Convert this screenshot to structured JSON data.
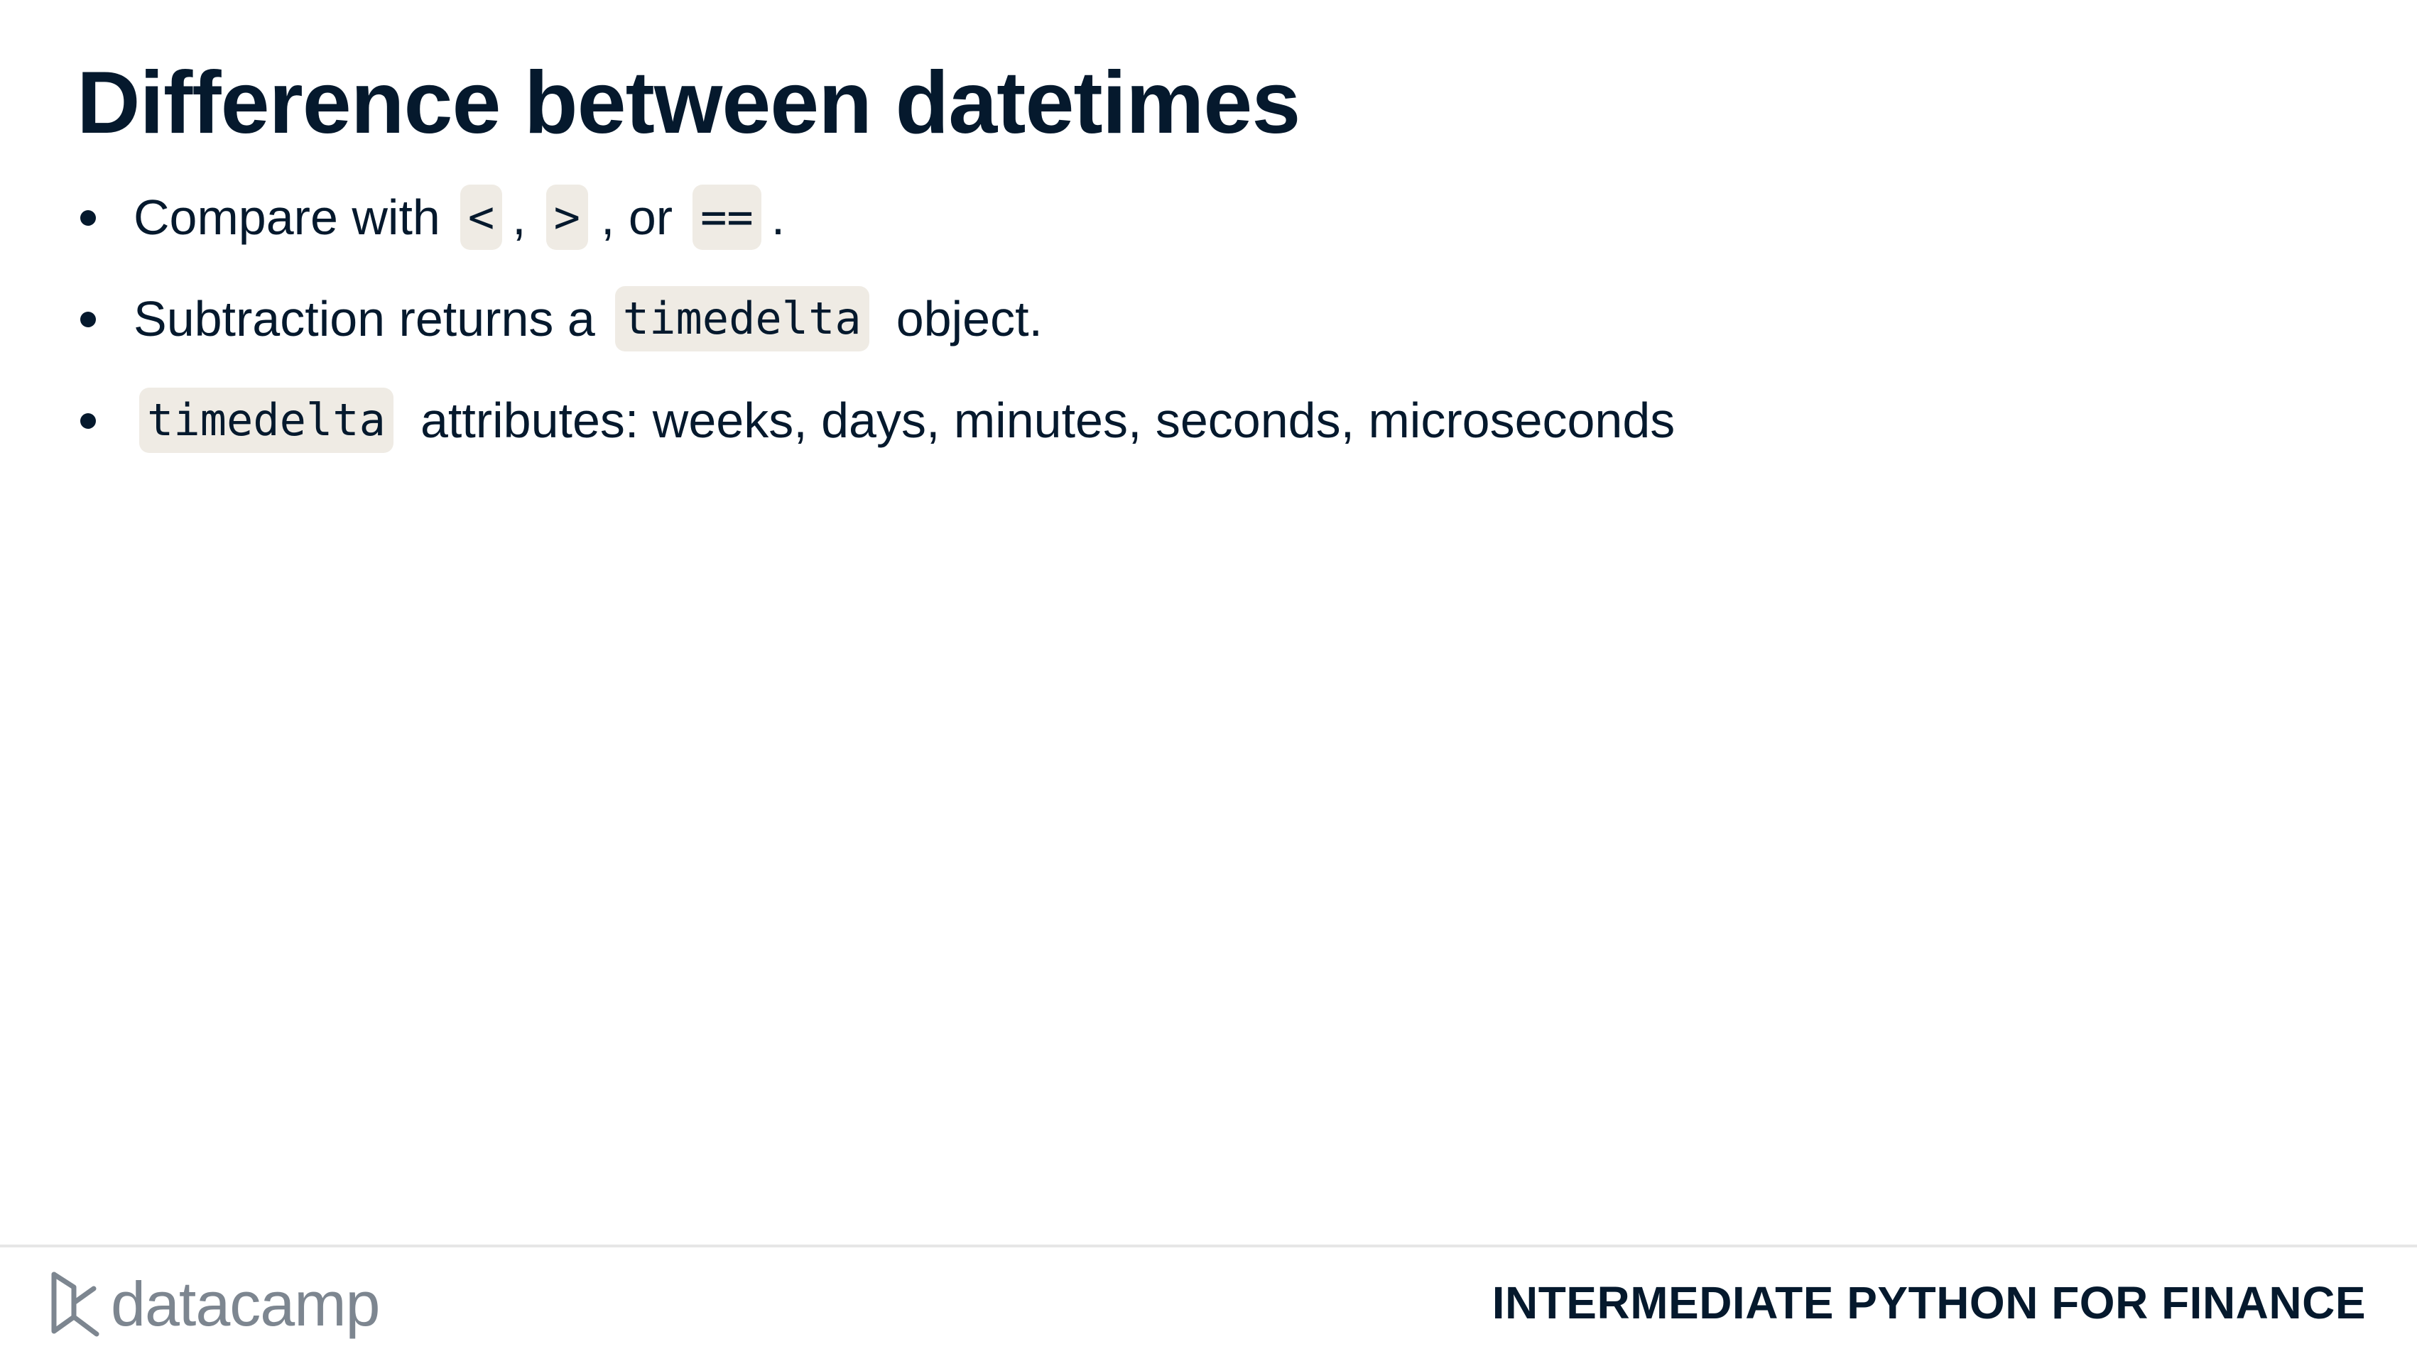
{
  "slide": {
    "title": "Difference between datetimes",
    "bullets": [
      {
        "text_before": "Compare with",
        "code_1": "<",
        "sep_1": ",",
        "code_2": ">",
        "sep_2": ", or",
        "code_3": "==",
        "text_after": "."
      },
      {
        "text_before": "Subtraction returns a",
        "code_1": "timedelta",
        "text_after": "object."
      },
      {
        "code_1": "timedelta",
        "text_after": "attributes: weeks, days, minutes, seconds, microseconds"
      }
    ]
  },
  "footer": {
    "logo_text": "datacamp",
    "course_title": "INTERMEDIATE PYTHON FOR FINANCE"
  },
  "colors": {
    "text": "#05192d",
    "code_background": "#efebe4",
    "logo_gray": "#7d8690"
  }
}
